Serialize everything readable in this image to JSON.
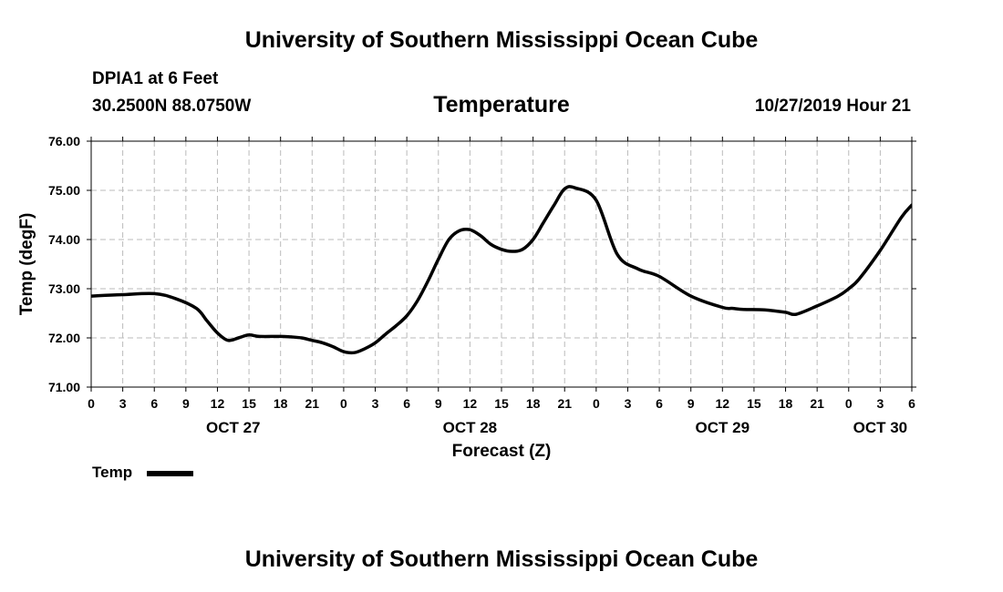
{
  "header": {
    "top_title": "University of Southern Mississippi Ocean Cube",
    "station": "DPIA1 at 6 Feet",
    "coords": "30.2500N 88.0750W",
    "chart_title": "Temperature",
    "datetime": "10/27/2019 Hour 21"
  },
  "footer": {
    "bottom_title": "University of Southern Mississippi Ocean Cube"
  },
  "colors": {
    "line": "#000000",
    "grid": "#bbbbbb",
    "background": "#ffffff"
  },
  "chart_data": {
    "type": "line",
    "title": "Temperature",
    "xlabel": "Forecast (Z)",
    "ylabel": "Temp (degF)",
    "ylim": [
      71,
      76
    ],
    "yticks": [
      "71.00",
      "72.00",
      "73.00",
      "74.00",
      "75.00",
      "76.00"
    ],
    "xlim_hours": [
      0,
      78
    ],
    "xticks": [
      {
        "hour": 0,
        "label": "0"
      },
      {
        "hour": 3,
        "label": "3"
      },
      {
        "hour": 6,
        "label": "6"
      },
      {
        "hour": 9,
        "label": "9"
      },
      {
        "hour": 12,
        "label": "12"
      },
      {
        "hour": 15,
        "label": "15"
      },
      {
        "hour": 18,
        "label": "18"
      },
      {
        "hour": 21,
        "label": "21"
      },
      {
        "hour": 24,
        "label": "0"
      },
      {
        "hour": 27,
        "label": "3"
      },
      {
        "hour": 30,
        "label": "6"
      },
      {
        "hour": 33,
        "label": "9"
      },
      {
        "hour": 36,
        "label": "12"
      },
      {
        "hour": 39,
        "label": "15"
      },
      {
        "hour": 42,
        "label": "18"
      },
      {
        "hour": 45,
        "label": "21"
      },
      {
        "hour": 48,
        "label": "0"
      },
      {
        "hour": 51,
        "label": "3"
      },
      {
        "hour": 54,
        "label": "6"
      },
      {
        "hour": 57,
        "label": "9"
      },
      {
        "hour": 60,
        "label": "12"
      },
      {
        "hour": 63,
        "label": "15"
      },
      {
        "hour": 66,
        "label": "18"
      },
      {
        "hour": 69,
        "label": "21"
      },
      {
        "hour": 72,
        "label": "0"
      },
      {
        "hour": 75,
        "label": "3"
      },
      {
        "hour": 78,
        "label": "6"
      }
    ],
    "date_labels": [
      {
        "hour": 13.5,
        "label": "OCT 27"
      },
      {
        "hour": 36,
        "label": "OCT 28"
      },
      {
        "hour": 60,
        "label": "OCT 29"
      },
      {
        "hour": 75,
        "label": "OCT 30"
      }
    ],
    "grid": true,
    "legend": "bottom-left",
    "series": [
      {
        "name": "Temp",
        "x": [
          0,
          3,
          6,
          8,
          10,
          11,
          12,
          13,
          14,
          15,
          16,
          18,
          19,
          20,
          21,
          22,
          23,
          24,
          25,
          26,
          27,
          28,
          29,
          30,
          31,
          32,
          33,
          34,
          35,
          36,
          37,
          38,
          39,
          40,
          41,
          42,
          43,
          44,
          45,
          46,
          48,
          50,
          52,
          54,
          57,
          60,
          61,
          62,
          64,
          66,
          67,
          69,
          71,
          72,
          73,
          75,
          77,
          78
        ],
        "y": [
          72.85,
          72.88,
          72.9,
          72.8,
          72.6,
          72.35,
          72.1,
          71.95,
          72.0,
          72.06,
          72.03,
          72.03,
          72.02,
          72.0,
          71.95,
          71.9,
          71.82,
          71.72,
          71.7,
          71.78,
          71.9,
          72.08,
          72.25,
          72.45,
          72.75,
          73.15,
          73.6,
          74.0,
          74.18,
          74.2,
          74.08,
          73.9,
          73.8,
          73.76,
          73.8,
          74.0,
          74.35,
          74.7,
          75.03,
          75.05,
          74.8,
          73.7,
          73.4,
          73.25,
          72.85,
          72.62,
          72.6,
          72.58,
          72.57,
          72.52,
          72.48,
          72.65,
          72.85,
          73.0,
          73.2,
          73.78,
          74.45,
          74.7
        ]
      }
    ]
  },
  "legend": {
    "label": "Temp"
  }
}
